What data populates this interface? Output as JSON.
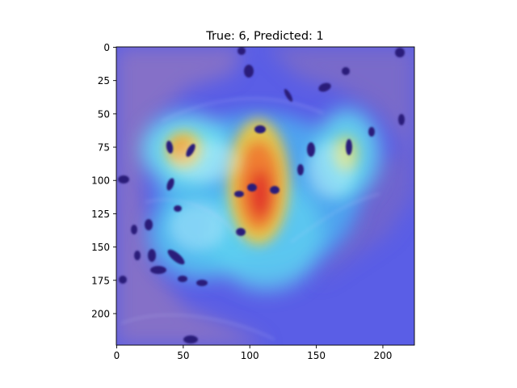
{
  "figure": {
    "title": "True: 6, Predicted: 1"
  },
  "axes": {
    "x_ticks": [
      "0",
      "50",
      "100",
      "150",
      "200"
    ],
    "y_ticks": [
      "0",
      "25",
      "50",
      "75",
      "100",
      "125",
      "150",
      "175",
      "200"
    ],
    "x_range": [
      0,
      224
    ],
    "y_range": [
      0,
      224
    ],
    "y_inverted": true
  },
  "image": {
    "content": "histology tissue patch with Grad-CAM jet-colormap heatmap overlay",
    "colormap": "jet",
    "colors": {
      "background_blue": "#5a5ee6",
      "tissue_purple": "#8a74c8",
      "nucleus_dark": "#2a1f7a",
      "hot_red": "#e0302a",
      "warm_yellow": "#f2c93a",
      "cool_cyan": "#6fe0f0"
    }
  }
}
